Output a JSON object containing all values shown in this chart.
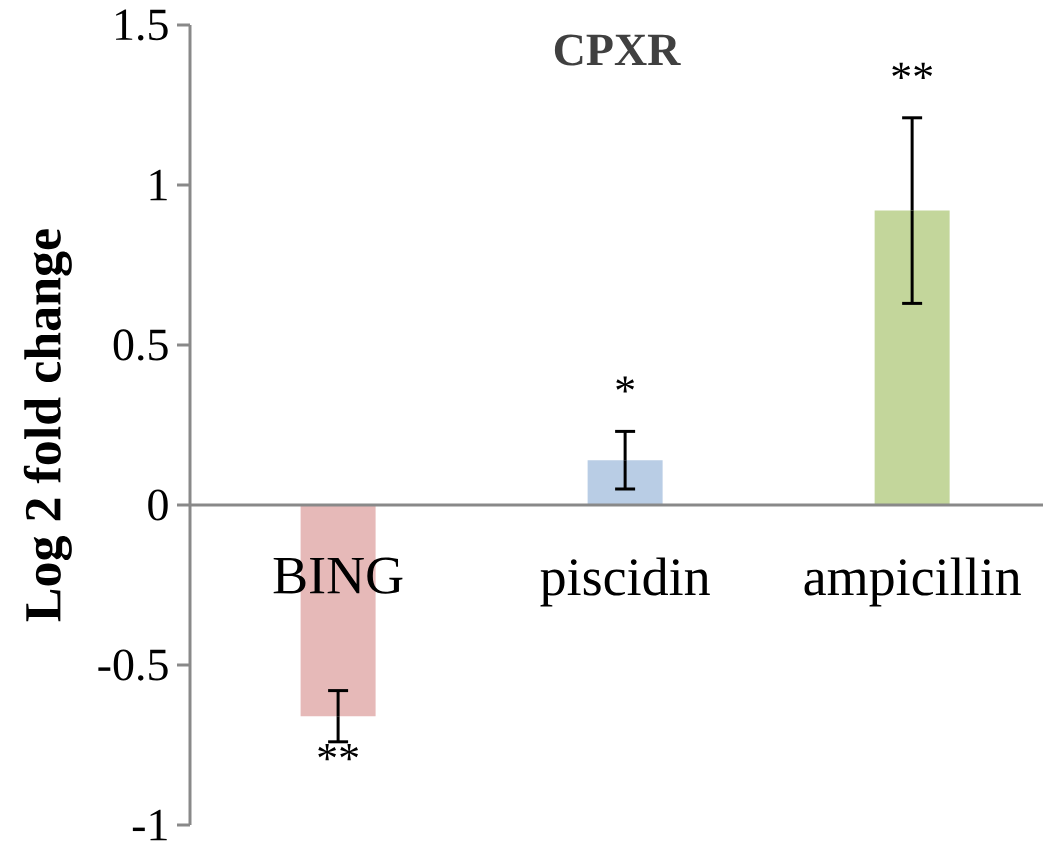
{
  "chart_data": {
    "type": "bar",
    "title": "CPXR",
    "ylabel": "Log 2 fold change",
    "categories": [
      "BING",
      "piscidin",
      "ampicillin"
    ],
    "values": [
      -0.66,
      0.14,
      0.92
    ],
    "errors": [
      0.08,
      0.09,
      0.29
    ],
    "colors": [
      "#e6b9b8",
      "#b9cde5",
      "#c3d69b"
    ],
    "ylim": [
      -1,
      1.5
    ],
    "yticks": [
      -1,
      -0.5,
      0,
      0.5,
      1,
      1.5
    ],
    "annotations": [
      "**",
      "*",
      "**"
    ]
  }
}
